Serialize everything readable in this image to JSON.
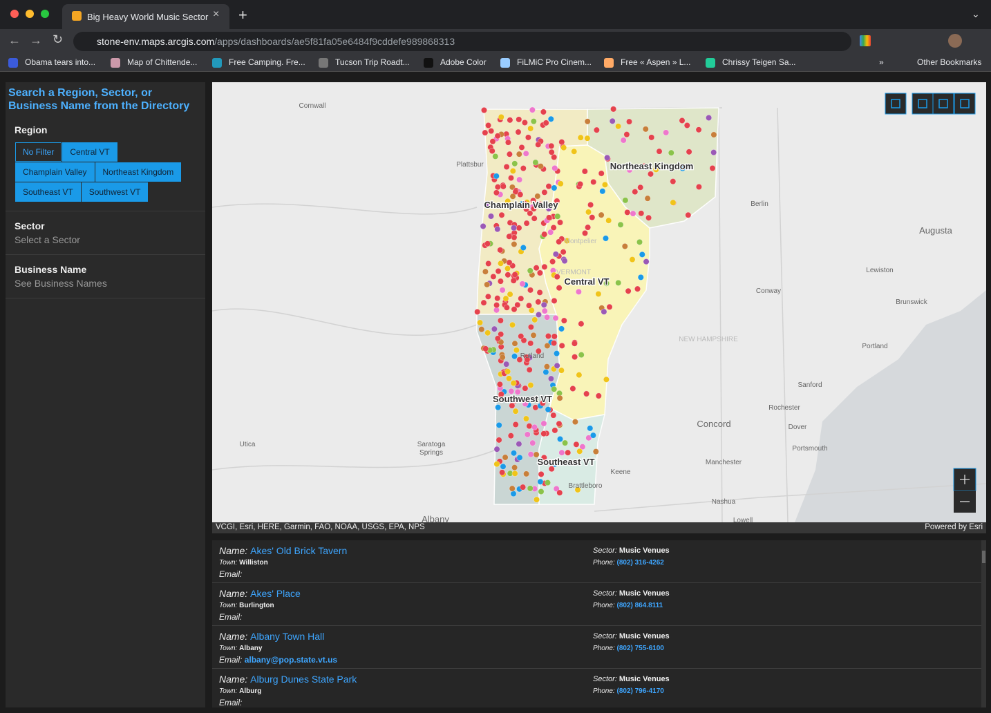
{
  "browser": {
    "tab_title": "Big Heavy World Music Sector",
    "url_host": "stone-env.maps.arcgis.com",
    "url_path": "/apps/dashboards/ae5f81fa05e6484f9cddefe989868313",
    "bookmarks": [
      "Obama tears into...",
      "Map of Chittende...",
      "Free Camping. Fre...",
      "Tucson Trip Roadt...",
      "Adobe Color",
      "FiLMiC Pro Cinem...",
      "Free « Aspen » L...",
      "Chrissy Teigen Sa..."
    ],
    "other_bookmarks": "Other Bookmarks"
  },
  "sidebar": {
    "title": "Search a Region, Sector, or Business Name from the Directory",
    "region_label": "Region",
    "regions": [
      "No Filter",
      "Central VT",
      "Champlain Valley",
      "Northeast Kingdom",
      "Southeast VT",
      "Southwest VT"
    ],
    "sector_label": "Sector",
    "sector_placeholder": "Select a Sector",
    "business_label": "Business Name",
    "business_placeholder": "See Business Names"
  },
  "map": {
    "labels": [
      "Cornwall",
      "Plattsbur",
      "Northeast Kingdom",
      "Champlain Valley",
      "Berlin",
      "Augusta",
      "Montpelier",
      "VERMONT",
      "Lewiston",
      "Central VT",
      "Conway",
      "Brunswick",
      "NEW HAMPSHIRE",
      "Rutland",
      "Portland",
      "Sanford",
      "Southwest VT",
      "Rochester",
      "Concord",
      "Dover",
      "Utica",
      "Saratoga Springs",
      "Portsmouth",
      "Southeast VT",
      "Manchester",
      "Keene",
      "Brattleboro",
      "Nashua",
      "Albany",
      "Lowell"
    ],
    "attribution": "VCGI, Esri, HERE, Garmin, FAO, NOAA, USGS, EPA, NPS",
    "powered_by": "Powered by Esri"
  },
  "list": {
    "field_labels": {
      "name": "Name:",
      "town": "Town:",
      "email": "Email:",
      "sector": "Sector:",
      "phone": "Phone:"
    },
    "rows": [
      {
        "name": "Akes' Old Brick Tavern",
        "town": "Williston",
        "email": null,
        "sector": "Music Venues",
        "phone": "(802) 316-4262"
      },
      {
        "name": "Akes' Place",
        "town": "Burlington",
        "email": null,
        "sector": "Music Venues",
        "phone": "(802) 864.8111"
      },
      {
        "name": "Albany Town Hall",
        "town": "Albany",
        "email": "albany@pop.state.vt.us",
        "sector": "Music Venues",
        "phone": "(802) 755-6100"
      },
      {
        "name": "Alburg Dunes State Park",
        "town": "Alburg",
        "email": null,
        "sector": "Music Venues",
        "phone": "(802) 796-4170"
      }
    ]
  }
}
